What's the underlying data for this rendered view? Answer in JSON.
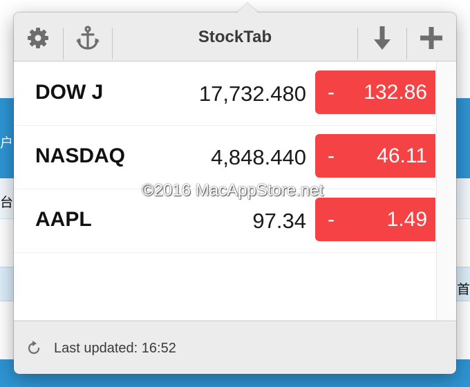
{
  "app": {
    "title": "StockTab"
  },
  "toolbar": {
    "settings_icon": "gear-icon",
    "anchor_icon": "anchor-icon",
    "download_icon": "arrow-down-icon",
    "add_icon": "plus-icon"
  },
  "stocks": [
    {
      "symbol": "DOW J",
      "price": "17,732.480",
      "sign": "-",
      "change": "132.86"
    },
    {
      "symbol": "NASDAQ",
      "price": "4,848.440",
      "sign": "-",
      "change": "46.11"
    },
    {
      "symbol": "AAPL",
      "price": "97.34",
      "sign": "-",
      "change": "1.49"
    }
  ],
  "footer": {
    "last_updated": "Last updated: 16:52"
  },
  "watermark": "©2016 MacAppStore.net",
  "background": {
    "chars": [
      "户",
      "台",
      "首"
    ]
  },
  "colors": {
    "change_down": "#f44245",
    "background_blue": "#2e95d4",
    "popover": "#ececec"
  }
}
